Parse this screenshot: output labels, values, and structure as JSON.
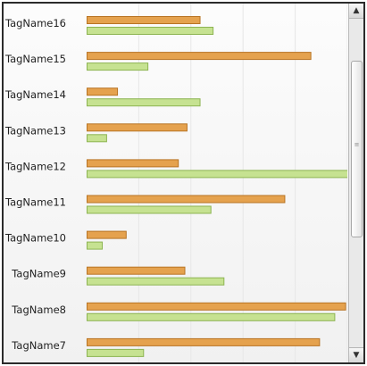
{
  "chart_data": {
    "type": "bar",
    "orientation": "horizontal",
    "grid": "vertical",
    "legend": "none",
    "categories": [
      "TagName16",
      "TagName15",
      "TagName14",
      "TagName13",
      "TagName12",
      "TagName11",
      "TagName10",
      "TagName9",
      "TagName8",
      "TagName7"
    ],
    "series": [
      {
        "color": "#e5a24e",
        "values": [
          52,
          103,
          14,
          46,
          42,
          91,
          18,
          45,
          119,
          107
        ]
      },
      {
        "color": "#c6e291",
        "values": [
          58,
          28,
          52,
          9,
          120,
          57,
          7,
          63,
          114,
          26
        ]
      }
    ],
    "xlim": [
      0,
      120
    ]
  },
  "scrollbar": {
    "up_icon": "arrow-up-icon",
    "down_icon": "arrow-down-icon",
    "up_glyph": "▲",
    "down_glyph": "▼",
    "grip_glyph": "≡"
  }
}
